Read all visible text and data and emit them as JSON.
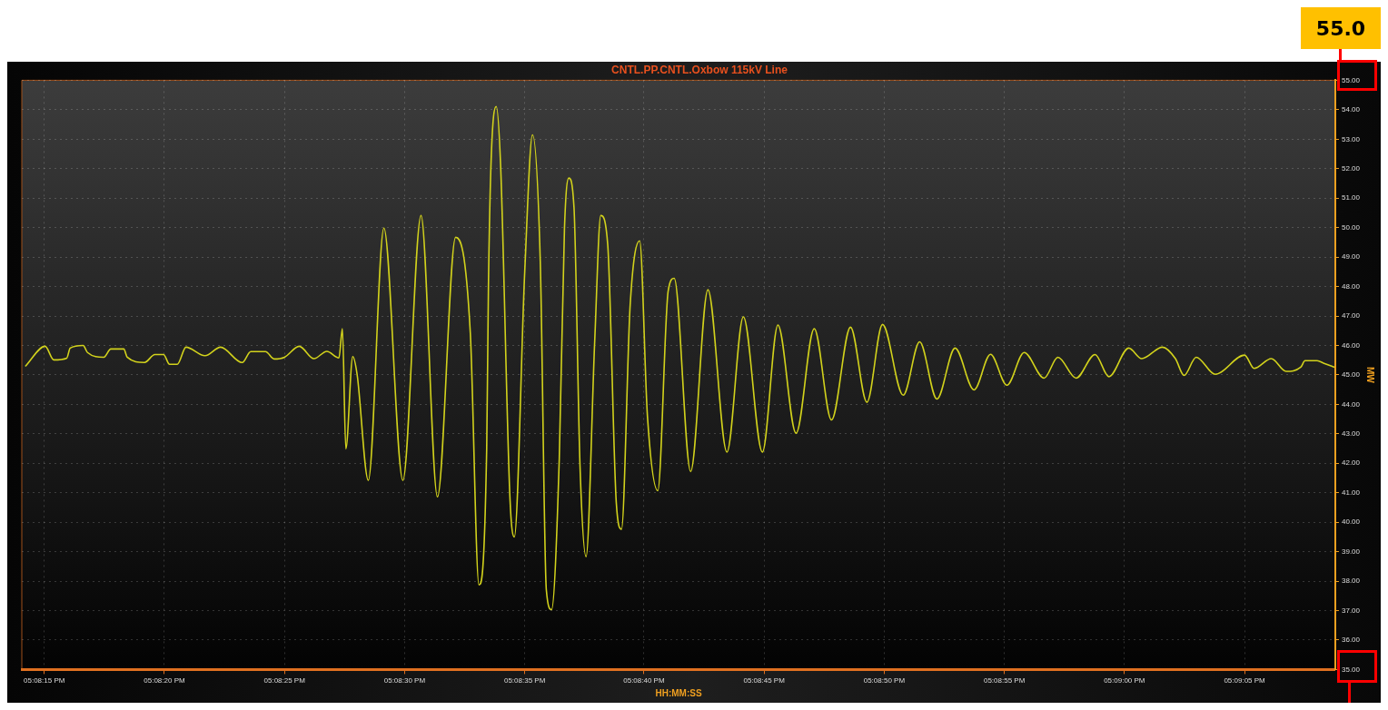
{
  "chart_data": {
    "type": "line",
    "title": "CNTL.PP.CNTL.Oxbow 115kV Line",
    "xlabel": "HH:MM:SS",
    "ylabel": "MW",
    "annotations": [
      "55.0"
    ],
    "series": [
      {
        "color": "#d2d21c",
        "x": [
          17.13728,
          17.13751,
          17.13761,
          17.13776,
          17.1378,
          17.13795,
          17.138,
          17.13819,
          17.13827,
          17.13842,
          17.13846,
          17.13866,
          17.13878,
          17.13888,
          17.13895,
          17.13904,
          17.13914,
          17.13936,
          17.13954,
          17.13979,
          17.13989,
          17.14006,
          17.14016,
          17.14028,
          17.14045,
          17.14062,
          17.14077,
          17.14091,
          17.14095,
          17.14099,
          17.14107,
          17.14112,
          17.14125,
          17.14143,
          17.14165,
          17.14186,
          17.14205,
          17.14226,
          17.14243,
          17.14253,
          17.14262,
          17.14264,
          17.14267,
          17.14273,
          17.14278,
          17.14289,
          17.14294,
          17.14306,
          17.14315,
          17.14324,
          17.14331,
          17.14337,
          17.14346,
          17.14352,
          17.14357,
          17.14363,
          17.1437,
          17.14377,
          17.14387,
          17.14394,
          17.14402,
          17.14412,
          17.14418,
          17.14428,
          17.14439,
          17.14448,
          17.1446,
          17.14472,
          17.14479,
          17.14498,
          17.14518,
          17.1454,
          17.14559,
          17.14581,
          17.14599,
          17.1462,
          17.14641,
          17.14661,
          17.14683,
          17.14702,
          17.1472,
          17.14744,
          17.14763,
          17.14783,
          17.14804,
          17.14826,
          17.14845,
          17.14864,
          17.14884,
          17.14907,
          17.14923,
          17.14944,
          17.14966,
          17.14982,
          17.15005,
          17.1502,
          17.15044,
          17.15059,
          17.15069,
          17.15083,
          17.15105,
          17.15139,
          17.1515,
          17.1517,
          17.15187,
          17.15204,
          17.15209,
          17.15223,
          17.15231,
          17.15243
        ],
        "values": [
          45.29,
          45.97,
          45.51,
          45.57,
          45.91,
          46.0,
          45.76,
          45.6,
          45.88,
          45.88,
          45.6,
          45.42,
          45.69,
          45.69,
          45.36,
          45.36,
          45.94,
          45.65,
          45.94,
          45.42,
          45.79,
          45.79,
          45.54,
          45.6,
          45.97,
          45.55,
          45.8,
          45.58,
          46.57,
          42.49,
          45.62,
          45.02,
          41.42,
          49.98,
          41.42,
          50.41,
          40.86,
          49.67,
          46.44,
          37.87,
          42.52,
          48.0,
          52.18,
          54.11,
          52.18,
          40.75,
          39.5,
          48.5,
          53.15,
          48.84,
          37.7,
          37.03,
          42.18,
          49.98,
          51.68,
          50.69,
          41.88,
          38.83,
          46.16,
          50.41,
          49.44,
          40.64,
          39.76,
          47.36,
          49.55,
          43.6,
          41.07,
          47.85,
          48.28,
          41.72,
          47.89,
          42.38,
          46.97,
          42.38,
          46.69,
          43.02,
          46.57,
          43.47,
          46.62,
          44.07,
          46.71,
          44.31,
          46.12,
          44.18,
          45.91,
          44.49,
          45.7,
          44.65,
          45.76,
          44.89,
          45.6,
          44.89,
          45.69,
          44.94,
          45.91,
          45.55,
          45.94,
          45.55,
          44.98,
          45.6,
          45.02,
          45.67,
          45.22,
          45.55,
          45.12,
          45.26,
          45.48,
          45.48,
          45.39,
          45.26
        ]
      }
    ],
    "xlim": [
      17.13724,
      17.15244
    ],
    "xticks": [
      {
        "value": 17.1375,
        "label": "05:08:15 PM"
      },
      {
        "value": 17.13889,
        "label": "05:08:20 PM"
      },
      {
        "value": 17.14028,
        "label": "05:08:25 PM"
      },
      {
        "value": 17.14167,
        "label": "05:08:30 PM"
      },
      {
        "value": 17.14306,
        "label": "05:08:35 PM"
      },
      {
        "value": 17.14444,
        "label": "05:08:40 PM"
      },
      {
        "value": 17.14583,
        "label": "05:08:45 PM"
      },
      {
        "value": 17.14722,
        "label": "05:08:50 PM"
      },
      {
        "value": 17.14861,
        "label": "05:08:55 PM"
      },
      {
        "value": 17.15,
        "label": "05:09:00 PM"
      },
      {
        "value": 17.15139,
        "label": "05:09:05 PM"
      }
    ],
    "ylim": [
      35,
      55
    ],
    "yticks": [
      {
        "value": 35,
        "label": "35.00"
      },
      {
        "value": 36,
        "label": "36.00"
      },
      {
        "value": 37,
        "label": "37.00"
      },
      {
        "value": 38,
        "label": "38.00"
      },
      {
        "value": 39,
        "label": "39.00"
      },
      {
        "value": 40,
        "label": "40.00"
      },
      {
        "value": 41,
        "label": "41.00"
      },
      {
        "value": 42,
        "label": "42.00"
      },
      {
        "value": 43,
        "label": "43.00"
      },
      {
        "value": 44,
        "label": "44.00"
      },
      {
        "value": 45,
        "label": "45.00"
      },
      {
        "value": 46,
        "label": "46.00"
      },
      {
        "value": 47,
        "label": "47.00"
      },
      {
        "value": 48,
        "label": "48.00"
      },
      {
        "value": 49,
        "label": "49.00"
      },
      {
        "value": 50,
        "label": "50.00"
      },
      {
        "value": 51,
        "label": "51.00"
      },
      {
        "value": 52,
        "label": "52.00"
      },
      {
        "value": 53,
        "label": "53.00"
      },
      {
        "value": 54,
        "label": "54.00"
      },
      {
        "value": 55,
        "label": "55.00"
      }
    ],
    "grid": true,
    "legend": false,
    "marker": "none",
    "line_style": "solid"
  }
}
